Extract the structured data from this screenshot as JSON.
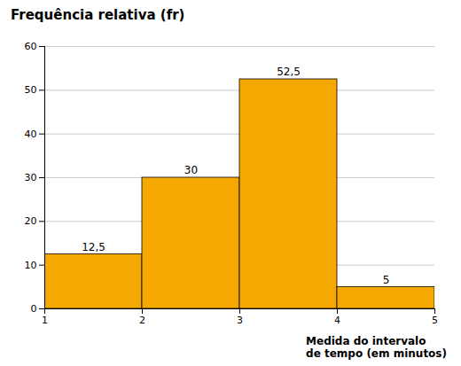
{
  "chart_data": {
    "type": "histogram",
    "title": "Frequência relativa (fr)",
    "xlabel": "Medida do intervalo\nde tempo (em minutos)",
    "bins": [
      1,
      2,
      3,
      4,
      5
    ],
    "values": [
      12.5,
      30,
      52.5,
      5
    ],
    "value_labels": [
      "12,5",
      "30",
      "52,5",
      "5"
    ],
    "data_labels": true,
    "color": "#F5A800",
    "xlim": [
      1,
      5
    ],
    "ylim": [
      0,
      60
    ],
    "xticks": [
      1,
      2,
      3,
      4,
      5
    ],
    "yticks": [
      0,
      10,
      20,
      30,
      40,
      50,
      60
    ],
    "grid": true
  }
}
